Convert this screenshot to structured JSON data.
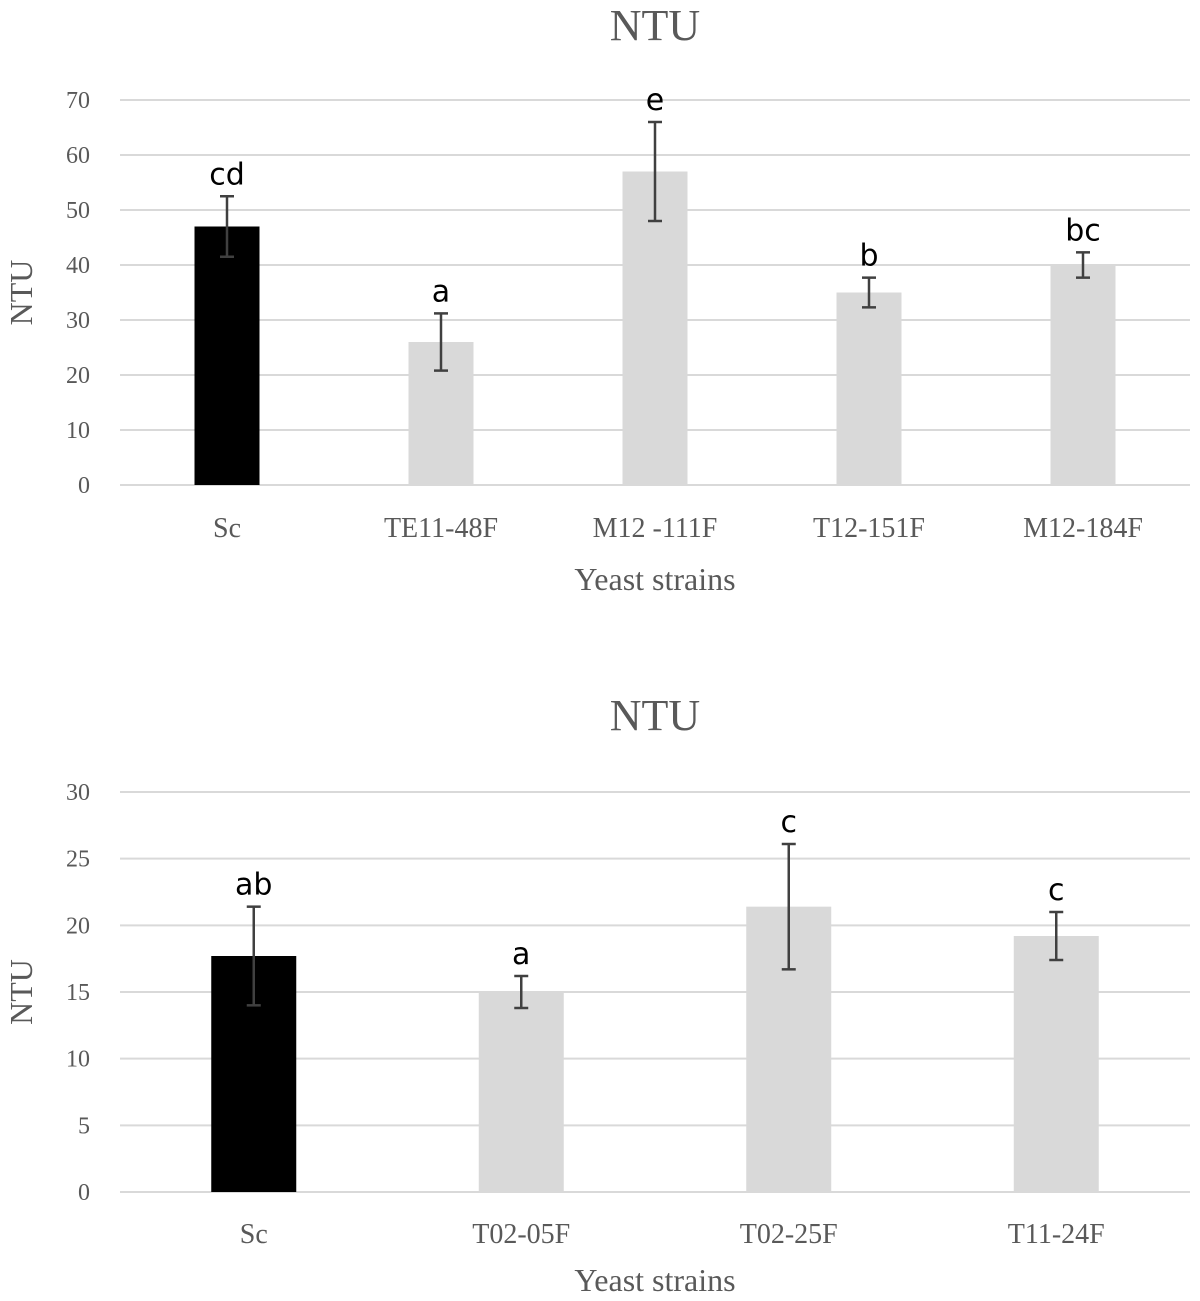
{
  "chart_data": [
    {
      "type": "bar",
      "title": "NTU",
      "xlabel": "Yeast strains",
      "ylabel": "NTU",
      "ylim": [
        0,
        70
      ],
      "yticks": [
        0,
        10,
        20,
        30,
        40,
        50,
        60,
        70
      ],
      "grid": true,
      "categories": [
        "Sc",
        "TE11-48F",
        "M12 -111F",
        "T12-151F",
        "M12-184F"
      ],
      "values": [
        47,
        26,
        57,
        35,
        40
      ],
      "errors": [
        5.5,
        5.2,
        9.0,
        2.7,
        2.3
      ],
      "letters": [
        "cd",
        "a",
        "e",
        "b",
        "bc"
      ],
      "colors": [
        "#000000",
        "#d9d9d9",
        "#d9d9d9",
        "#d9d9d9",
        "#d9d9d9"
      ]
    },
    {
      "type": "bar",
      "title": "NTU",
      "xlabel": "Yeast strains",
      "ylabel": "NTU",
      "ylim": [
        0,
        30
      ],
      "yticks": [
        0,
        5,
        10,
        15,
        20,
        25,
        30
      ],
      "grid": true,
      "categories": [
        "Sc",
        "T02-05F",
        "T02-25F",
        "T11-24F"
      ],
      "values": [
        17.7,
        15,
        21.4,
        19.2
      ],
      "errors": [
        3.7,
        1.2,
        4.7,
        1.8
      ],
      "letters": [
        "ab",
        "a",
        "c",
        "c"
      ],
      "colors": [
        "#000000",
        "#d9d9d9",
        "#d9d9d9",
        "#d9d9d9"
      ]
    }
  ]
}
